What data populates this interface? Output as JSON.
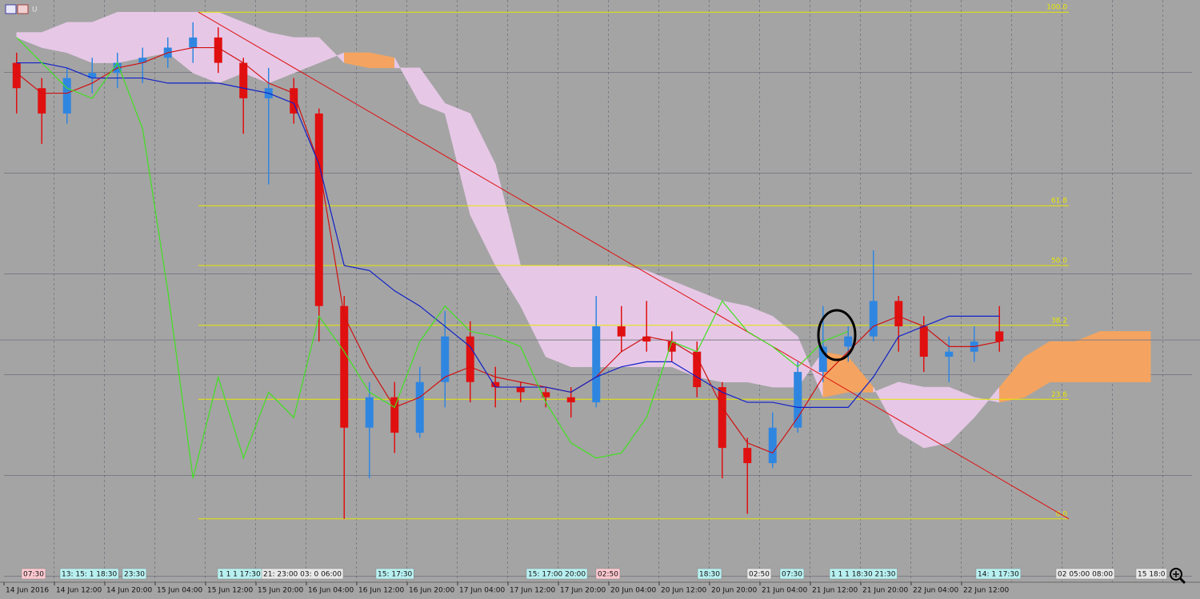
{
  "chart_data": {
    "type": "candlestick",
    "title": "U",
    "ylim": [
      -12.5,
      102.4
    ],
    "categories": [
      "14 Jun 2016",
      null,
      "14 Jun 12:00",
      null,
      "14 Jun 20:00",
      null,
      "15 Jun 04:00",
      null,
      "15 Jun 12:00",
      null,
      "15 Jun 20:00",
      null,
      "16 Jun 04:00",
      null,
      "16 Jun 12:00",
      null,
      "16 Jun 20:00",
      null,
      "17 Jun 04:00",
      null,
      "17 Jun 12:00",
      null,
      "17 Jun 20:00",
      null,
      "20 Jun 04:00",
      null,
      "20 Jun 12:00",
      null,
      "20 Jun 20:00",
      null,
      "21 Jun 04:00",
      null,
      "21 Jun 12:00",
      null,
      "21 Jun 20:00",
      null,
      "22 Jun 04:00",
      null,
      "22 Jun 12:00",
      null,
      null,
      null,
      null,
      null,
      null,
      null
    ],
    "candles": {
      "up_color": "#2f86e0",
      "down_color": "#e01010",
      "open": [
        90,
        85,
        80,
        87,
        88,
        90,
        91,
        93,
        95,
        90,
        83,
        85,
        80,
        42,
        18,
        24,
        17,
        27,
        36,
        27,
        26,
        25,
        24,
        23,
        38,
        36,
        35,
        33,
        26,
        14,
        11,
        18,
        29,
        34,
        36,
        43,
        38,
        32,
        33,
        37,
        null,
        null,
        null,
        null,
        null,
        null
      ],
      "high": [
        92,
        87,
        89,
        91,
        92,
        93,
        95,
        98,
        97,
        91,
        89,
        87,
        81,
        44,
        27,
        27,
        30,
        41,
        39,
        30,
        27,
        26,
        26,
        44,
        42,
        43,
        37,
        35,
        27,
        16,
        21,
        31,
        42,
        38,
        53,
        44,
        40,
        36,
        38,
        42,
        null,
        null,
        null,
        null,
        null,
        null
      ],
      "low": [
        80,
        74,
        78,
        84,
        85,
        86,
        89,
        90,
        88,
        76,
        66,
        78,
        35,
        0,
        8,
        13,
        16,
        22,
        23,
        22,
        23,
        22,
        20,
        22,
        33,
        33,
        31,
        24,
        8,
        1,
        10,
        17,
        27,
        31,
        35,
        33,
        29,
        27,
        31,
        33,
        null,
        null,
        null,
        null,
        null,
        null
      ],
      "close": [
        85,
        80,
        87,
        88,
        90,
        91,
        93,
        95,
        90,
        83,
        85,
        80,
        42,
        18,
        24,
        17,
        27,
        36,
        27,
        26,
        25,
        24,
        23,
        38,
        36,
        35,
        33,
        26,
        14,
        11,
        18,
        29,
        34,
        36,
        43,
        38,
        32,
        33,
        35,
        35,
        null,
        null,
        null,
        null,
        null,
        null
      ]
    },
    "series": [
      {
        "color": "#d01010",
        "values": [
          88,
          84,
          84,
          86,
          89,
          90,
          92,
          93,
          93,
          90,
          86,
          84,
          70,
          40,
          30,
          22,
          24,
          28,
          30,
          28,
          27,
          26,
          25,
          28,
          33,
          36,
          35,
          32,
          22,
          15,
          13,
          20,
          28,
          33,
          38,
          40,
          38,
          34,
          34,
          35,
          null,
          null,
          null,
          null,
          null,
          null
        ]
      },
      {
        "color": "#1020c8",
        "values": [
          90,
          90,
          89,
          87,
          87,
          87,
          86,
          86,
          86,
          85,
          84,
          82,
          70,
          50,
          49,
          45,
          42,
          38,
          34,
          26,
          26,
          26,
          25,
          28,
          30,
          31,
          31,
          28,
          25,
          23,
          23,
          22,
          22,
          22,
          28,
          36,
          38,
          40,
          40,
          40,
          null,
          null,
          null,
          null,
          null,
          null
        ]
      },
      {
        "color": "#40e020",
        "values": [
          95,
          90,
          85,
          83,
          90,
          77,
          45,
          8,
          28,
          12,
          25,
          20,
          40,
          33,
          25,
          22,
          35,
          42,
          37,
          36,
          34,
          23,
          15,
          12,
          13,
          20,
          35,
          33,
          43,
          37,
          34,
          30,
          35,
          37,
          null,
          null,
          null,
          null,
          null,
          null,
          null,
          null,
          null,
          null,
          null,
          null
        ]
      }
    ],
    "cloud": {
      "up_color": "#f4a460",
      "down_color": "#e6c8e6",
      "span_a": [
        95,
        93,
        92,
        90,
        90,
        91,
        92,
        88,
        86,
        88,
        86,
        88,
        90,
        92,
        92,
        91,
        82,
        80,
        60,
        50,
        42,
        32,
        30,
        30,
        30,
        30,
        30,
        28,
        27,
        27,
        26,
        26,
        33,
        32,
        26,
        17,
        14,
        15,
        20,
        26,
        32,
        35,
        35,
        37,
        37,
        37
      ],
      "span_b": [
        96,
        96,
        98,
        98,
        100,
        100,
        100,
        100,
        100,
        98,
        96,
        95,
        95,
        90,
        89,
        89,
        89,
        82,
        80,
        70,
        50,
        50,
        50,
        50,
        50,
        49,
        47,
        45,
        43,
        42,
        40,
        36,
        24,
        25,
        25,
        27,
        26,
        26,
        24,
        23,
        24,
        27,
        27,
        27,
        27,
        27
      ]
    },
    "fib_color": "#e8e800",
    "fib_levels": [
      {
        "value": 100,
        "label": "100.0"
      },
      {
        "value": 61.8,
        "label": "61.8"
      },
      {
        "value": 50,
        "label": "50.0"
      },
      {
        "value": 38.2,
        "label": "38.2"
      },
      {
        "value": 23.6,
        "label": "23.6"
      },
      {
        "value": 0,
        "label": "0.0"
      }
    ],
    "trend_line": {
      "from": 100,
      "to": 0,
      "color": "#e01010"
    },
    "price_line": 35.3,
    "event_labels": [
      {
        "text": "07:30",
        "color": "#ffc8d0"
      },
      {
        "text": "13: 15: 1 18:30",
        "color": "#b8f0f0"
      },
      {
        "text": "23:30",
        "color": "#b8f0f0"
      },
      {
        "text": "1 1 1 17:30",
        "color": "#b8f0f0"
      },
      {
        "text": "21: 23:00 03: 0 06:00",
        "color": "#e8e8e8"
      },
      {
        "text": "15: 17:30",
        "color": "#b8f0f0"
      },
      {
        "text": "15: 17:00 20:00",
        "color": "#b8f0f0"
      },
      {
        "text": "02:50",
        "color": "#ffc8d0"
      },
      {
        "text": "18:30",
        "color": "#b8f0f0"
      },
      {
        "text": "02:50",
        "color": "#e8e8e8"
      },
      {
        "text": "07:30",
        "color": "#b8f0f0"
      },
      {
        "text": "1 1 1 18:30 21:30",
        "color": "#b8f0f0"
      },
      {
        "text": "14: 1 17:30",
        "color": "#b8f0f0"
      },
      {
        "text": "02 05:00 08:00",
        "color": "#e8e8e8"
      },
      {
        "text": "15 18:0",
        "color": "#e8e8e8"
      }
    ]
  }
}
